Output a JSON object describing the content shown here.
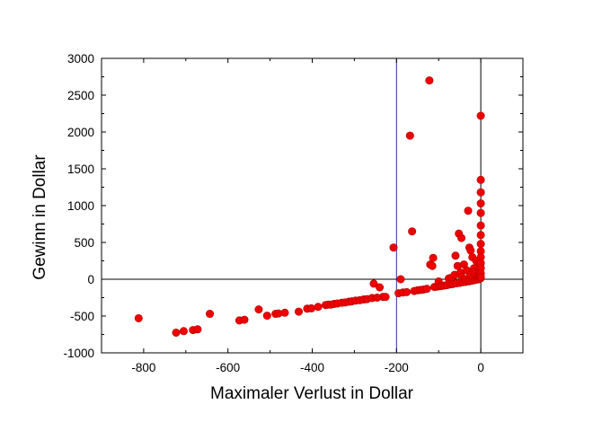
{
  "chart_data": {
    "type": "scatter",
    "title": "",
    "xlabel": "Maximaler Verlust in Dollar",
    "ylabel": "Gewinn in Dollar",
    "xlim": [
      -900,
      100
    ],
    "ylim": [
      -1000,
      3000
    ],
    "x_ticks": [
      -800,
      -600,
      -400,
      -200,
      0
    ],
    "x_tick_labels": [
      "-800",
      "-600",
      "-400",
      "-200",
      "0"
    ],
    "y_ticks": [
      -1000,
      -500,
      0,
      500,
      1000,
      1500,
      2000,
      2500,
      3000
    ],
    "y_tick_labels": [
      "-1000",
      "-500",
      "0",
      "500",
      "1000",
      "1500",
      "2000",
      "2500",
      "3000"
    ],
    "reference_lines": {
      "vertical_x": [
        -200,
        0
      ],
      "horizontal_y": [
        0
      ]
    },
    "grid": false,
    "legend": "none",
    "marker_color": "#ee0000",
    "reference_line_color": "#2b2b9c",
    "series": [
      {
        "points": [
          [
            -812,
            -530
          ],
          [
            -723,
            -725
          ],
          [
            -705,
            -705
          ],
          [
            -683,
            -690
          ],
          [
            -672,
            -680
          ],
          [
            -643,
            -470
          ],
          [
            -573,
            -560
          ],
          [
            -561,
            -550
          ],
          [
            -527,
            -410
          ],
          [
            -507,
            -495
          ],
          [
            -487,
            -470
          ],
          [
            -480,
            -465
          ],
          [
            -465,
            -455
          ],
          [
            -432,
            -440
          ],
          [
            -412,
            -400
          ],
          [
            -402,
            -395
          ],
          [
            -386,
            -375
          ],
          [
            -368,
            -350
          ],
          [
            -362,
            -345
          ],
          [
            -356,
            -345
          ],
          [
            -348,
            -335
          ],
          [
            -340,
            -330
          ],
          [
            -330,
            -320
          ],
          [
            -322,
            -315
          ],
          [
            -313,
            -305
          ],
          [
            -306,
            -300
          ],
          [
            -297,
            -290
          ],
          [
            -287,
            -285
          ],
          [
            -278,
            -275
          ],
          [
            -270,
            -270
          ],
          [
            -258,
            -255
          ],
          [
            -254,
            -60
          ],
          [
            -246,
            -250
          ],
          [
            -240,
            -110
          ],
          [
            -232,
            -240
          ],
          [
            -226,
            -240
          ],
          [
            -207,
            430
          ],
          [
            -195,
            -190
          ],
          [
            -190,
            0
          ],
          [
            -185,
            -180
          ],
          [
            -176,
            -175
          ],
          [
            -168,
            1950
          ],
          [
            -163,
            650
          ],
          [
            -158,
            -160
          ],
          [
            -150,
            -150
          ],
          [
            -143,
            -145
          ],
          [
            -136,
            -140
          ],
          [
            -128,
            -130
          ],
          [
            -122,
            2700
          ],
          [
            -120,
            200
          ],
          [
            -115,
            180
          ],
          [
            -113,
            290
          ],
          [
            -110,
            -105
          ],
          [
            -104,
            -100
          ],
          [
            -100,
            -30
          ],
          [
            -97,
            -95
          ],
          [
            -92,
            -90
          ],
          [
            -86,
            -85
          ],
          [
            -80,
            -80
          ],
          [
            -76,
            10
          ],
          [
            -72,
            -70
          ],
          [
            -70,
            20
          ],
          [
            -66,
            -65
          ],
          [
            -62,
            60
          ],
          [
            -60,
            320
          ],
          [
            -58,
            -55
          ],
          [
            -55,
            180
          ],
          [
            -52,
            620
          ],
          [
            -50,
            -50
          ],
          [
            -48,
            90
          ],
          [
            -46,
            560
          ],
          [
            -45,
            30
          ],
          [
            -42,
            -40
          ],
          [
            -40,
            200
          ],
          [
            -37,
            0
          ],
          [
            -35,
            -35
          ],
          [
            -33,
            120
          ],
          [
            -30,
            930
          ],
          [
            -28,
            -28
          ],
          [
            -27,
            430
          ],
          [
            -25,
            60
          ],
          [
            -24,
            390
          ],
          [
            -22,
            -20
          ],
          [
            -20,
            300
          ],
          [
            -18,
            20
          ],
          [
            -16,
            150
          ],
          [
            -15,
            -12
          ],
          [
            -13,
            80
          ],
          [
            -11,
            250
          ],
          [
            -10,
            -5
          ],
          [
            -8,
            40
          ],
          [
            -7,
            180
          ],
          [
            -5,
            0
          ],
          [
            -4,
            100
          ],
          [
            -3,
            30
          ],
          [
            -2,
            60
          ],
          [
            -1,
            10
          ],
          [
            -1,
            200
          ],
          [
            0,
            2220
          ],
          [
            0,
            1350
          ],
          [
            0,
            1180
          ],
          [
            0,
            1030
          ],
          [
            0,
            900
          ],
          [
            0,
            730
          ],
          [
            0,
            600
          ],
          [
            0,
            480
          ],
          [
            0,
            380
          ],
          [
            0,
            300
          ],
          [
            0,
            220
          ],
          [
            0,
            150
          ],
          [
            0,
            80
          ],
          [
            0,
            30
          ]
        ]
      }
    ]
  }
}
